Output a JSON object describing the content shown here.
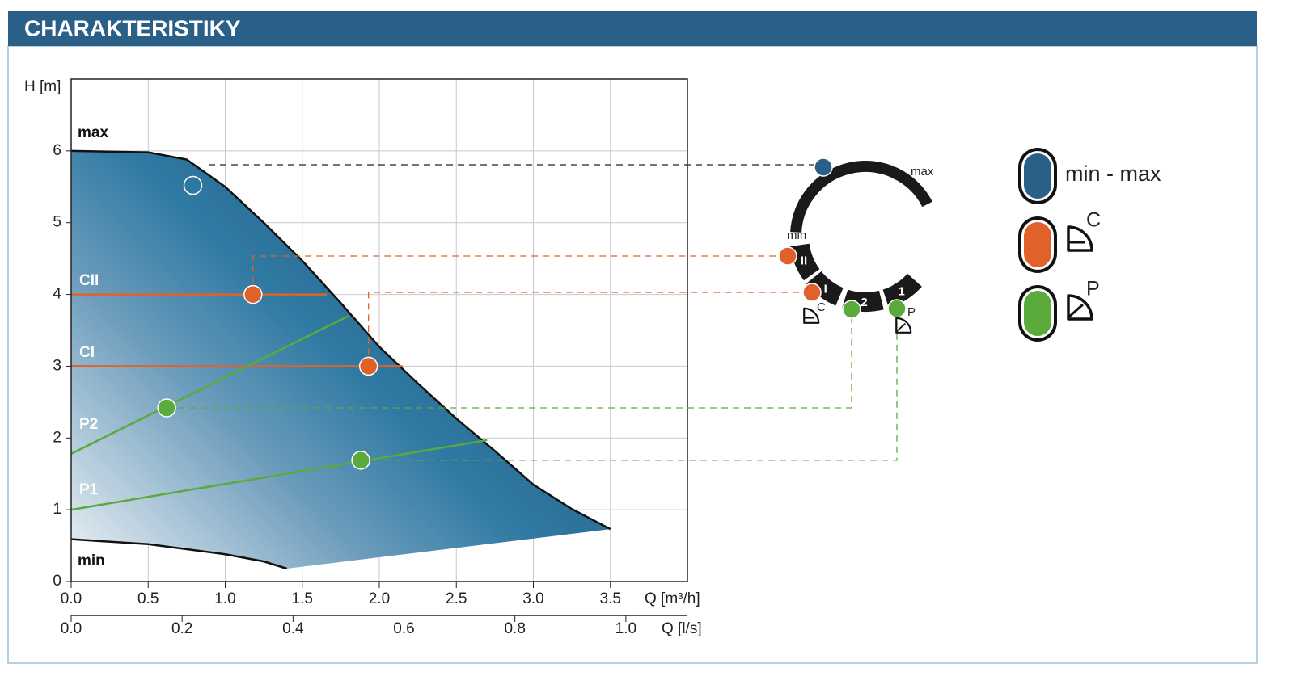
{
  "header": {
    "title": "CHARAKTERISTIKY"
  },
  "chart_data": {
    "type": "line",
    "y_label": "H [m]",
    "x_label": "Q [m³/h]",
    "x2_label": "Q [l/s]",
    "xlim": [
      0,
      4
    ],
    "xticks": [
      {
        "value": 0,
        "label": "0.0"
      },
      0.5,
      {
        "value": 1,
        "label": "1.0"
      },
      1.5,
      {
        "value": 2,
        "label": "2.0"
      },
      2.5,
      {
        "value": 3,
        "label": "3.0"
      },
      3.5
    ],
    "x2lim": [
      0,
      1.111
    ],
    "x2ticks": [
      {
        "value": 0,
        "label": "0.0"
      },
      0.2,
      0.4,
      0.6,
      0.8,
      {
        "value": 1,
        "label": "1.0"
      }
    ],
    "ylim": [
      0,
      7
    ],
    "yticks": [
      0,
      1,
      2,
      3,
      4,
      5,
      6
    ],
    "grid": true,
    "series": [
      {
        "name": "max",
        "color": "#111111",
        "x": [
          0,
          0.5,
          0.75,
          1.0,
          1.25,
          1.5,
          1.75,
          2.0,
          2.25,
          2.5,
          2.75,
          3.0,
          3.25,
          3.5
        ],
        "values": [
          6.0,
          5.98,
          5.88,
          5.5,
          5.0,
          4.47,
          3.88,
          3.27,
          2.76,
          2.27,
          1.82,
          1.35,
          1.01,
          0.73
        ]
      },
      {
        "name": "min",
        "color": "#111111",
        "x": [
          0,
          0.5,
          1.0,
          1.25,
          1.4
        ],
        "values": [
          0.59,
          0.52,
          0.38,
          0.28,
          0.18
        ]
      },
      {
        "name": "CII",
        "color": "#e0622a",
        "x": [
          0,
          1.66
        ],
        "values": [
          4,
          4
        ]
      },
      {
        "name": "CI",
        "color": "#e0622a",
        "x": [
          0,
          2.15
        ],
        "values": [
          3,
          3
        ]
      },
      {
        "name": "P2",
        "color": "#5aaa3c",
        "x": [
          0,
          1.8
        ],
        "values": [
          1.78,
          3.7
        ]
      },
      {
        "name": "P1",
        "color": "#5aaa3c",
        "x": [
          0,
          2.7
        ],
        "values": [
          1.0,
          1.97
        ]
      }
    ],
    "operating_points": {
      "x": [
        0.79,
        1.18,
        1.93,
        0.62,
        1.88
      ],
      "values": [
        5.52,
        4.0,
        3.0,
        2.42,
        1.69
      ],
      "colors": [
        "#ffffff",
        "#e0622a",
        "#e0622a",
        "#5aaa3c",
        "#5aaa3c"
      ],
      "hollow": [
        true,
        false,
        false,
        false,
        false
      ]
    }
  },
  "dial": {
    "max": "max",
    "min": "min",
    "segments": [
      "II",
      "I",
      "2",
      "1"
    ],
    "symbol_labels": [
      "C",
      "P"
    ]
  },
  "legend": [
    {
      "label": "min - max",
      "color": "#2a6088"
    },
    {
      "label": "C",
      "color": "#e0622a"
    },
    {
      "label": "P",
      "color": "#5aaa3c"
    }
  ]
}
